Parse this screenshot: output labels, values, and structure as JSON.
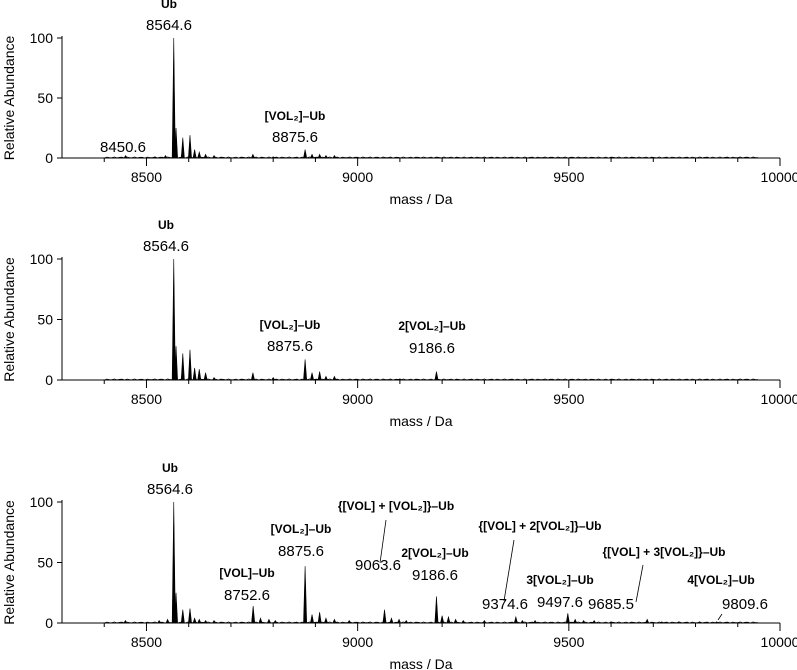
{
  "chart_data": [
    {
      "type": "bar",
      "xlabel": "mass / Da",
      "ylabel": "Relative Abundance",
      "xlim": [
        8300,
        10000
      ],
      "ylim": [
        0,
        100
      ],
      "xticks": [
        8500,
        9000,
        9500,
        10000
      ],
      "yticks": [
        0,
        50,
        100
      ],
      "peaks": [
        {
          "x": 8450.6,
          "y": 2
        },
        {
          "x": 8520,
          "y": 1
        },
        {
          "x": 8545,
          "y": 2
        },
        {
          "x": 8564.6,
          "y": 100
        },
        {
          "x": 8570,
          "y": 25
        },
        {
          "x": 8586,
          "y": 17
        },
        {
          "x": 8603,
          "y": 19
        },
        {
          "x": 8614,
          "y": 7
        },
        {
          "x": 8625,
          "y": 5
        },
        {
          "x": 8640,
          "y": 3
        },
        {
          "x": 8660,
          "y": 2
        },
        {
          "x": 8752,
          "y": 3
        },
        {
          "x": 8800,
          "y": 1
        },
        {
          "x": 8875.6,
          "y": 7
        },
        {
          "x": 8892,
          "y": 3
        },
        {
          "x": 8910,
          "y": 3
        },
        {
          "x": 8925,
          "y": 2
        },
        {
          "x": 8945,
          "y": 2
        }
      ],
      "annotations": [
        {
          "label": "Ub",
          "value": "8564.6",
          "x": 8564.6,
          "y": 100
        },
        {
          "label": "",
          "value": "8450.6",
          "x": 8450.6,
          "y": 2
        },
        {
          "label": "[VOL₂]–Ub",
          "value": "8875.6",
          "x": 8875.6,
          "y": 7
        }
      ]
    },
    {
      "type": "bar",
      "xlabel": "mass / Da",
      "ylabel": "Relative Abundance",
      "xlim": [
        8300,
        10000
      ],
      "ylim": [
        0,
        100
      ],
      "xticks": [
        8500,
        9000,
        9500,
        10000
      ],
      "yticks": [
        0,
        50,
        100
      ],
      "peaks": [
        {
          "x": 8564.6,
          "y": 100
        },
        {
          "x": 8570,
          "y": 28
        },
        {
          "x": 8586,
          "y": 22
        },
        {
          "x": 8603,
          "y": 25
        },
        {
          "x": 8614,
          "y": 10
        },
        {
          "x": 8625,
          "y": 9
        },
        {
          "x": 8640,
          "y": 6
        },
        {
          "x": 8660,
          "y": 2
        },
        {
          "x": 8752,
          "y": 6
        },
        {
          "x": 8800,
          "y": 2
        },
        {
          "x": 8875.6,
          "y": 17
        },
        {
          "x": 8892,
          "y": 6
        },
        {
          "x": 8910,
          "y": 7
        },
        {
          "x": 8925,
          "y": 3
        },
        {
          "x": 8945,
          "y": 3
        },
        {
          "x": 9100,
          "y": 1
        },
        {
          "x": 9186.6,
          "y": 7
        }
      ],
      "annotations": [
        {
          "label": "Ub",
          "value": "8564.6",
          "x": 8564.6,
          "y": 100
        },
        {
          "label": "[VOL₂]–Ub",
          "value": "8875.6",
          "x": 8875.6,
          "y": 17
        },
        {
          "label": "2[VOL₂]–Ub",
          "value": "9186.6",
          "x": 9186.6,
          "y": 7
        }
      ]
    },
    {
      "type": "bar",
      "xlabel": "mass / Da",
      "ylabel": "Relative Abundance",
      "xlim": [
        8300,
        10000
      ],
      "ylim": [
        0,
        100
      ],
      "xticks": [
        8500,
        9000,
        9500,
        10000
      ],
      "yticks": [
        0,
        50,
        100
      ],
      "peaks": [
        {
          "x": 8450,
          "y": 2
        },
        {
          "x": 8530,
          "y": 2
        },
        {
          "x": 8550,
          "y": 3
        },
        {
          "x": 8564.6,
          "y": 100
        },
        {
          "x": 8570,
          "y": 25
        },
        {
          "x": 8586,
          "y": 11
        },
        {
          "x": 8603,
          "y": 12
        },
        {
          "x": 8614,
          "y": 4
        },
        {
          "x": 8625,
          "y": 3
        },
        {
          "x": 8640,
          "y": 2
        },
        {
          "x": 8660,
          "y": 2
        },
        {
          "x": 8752.6,
          "y": 14
        },
        {
          "x": 8770,
          "y": 4
        },
        {
          "x": 8790,
          "y": 3
        },
        {
          "x": 8805,
          "y": 2
        },
        {
          "x": 8875.6,
          "y": 47
        },
        {
          "x": 8892,
          "y": 7
        },
        {
          "x": 8910,
          "y": 9
        },
        {
          "x": 8925,
          "y": 4
        },
        {
          "x": 8945,
          "y": 3
        },
        {
          "x": 8980,
          "y": 2
        },
        {
          "x": 9063.6,
          "y": 11
        },
        {
          "x": 9080,
          "y": 4
        },
        {
          "x": 9098,
          "y": 3
        },
        {
          "x": 9115,
          "y": 2
        },
        {
          "x": 9186.6,
          "y": 22
        },
        {
          "x": 9200,
          "y": 6
        },
        {
          "x": 9215,
          "y": 5
        },
        {
          "x": 9232,
          "y": 3
        },
        {
          "x": 9250,
          "y": 2
        },
        {
          "x": 9300,
          "y": 2
        },
        {
          "x": 9374.6,
          "y": 5
        },
        {
          "x": 9390,
          "y": 2
        },
        {
          "x": 9420,
          "y": 2
        },
        {
          "x": 9497.6,
          "y": 8
        },
        {
          "x": 9515,
          "y": 3
        },
        {
          "x": 9535,
          "y": 2
        },
        {
          "x": 9560,
          "y": 2
        },
        {
          "x": 9600,
          "y": 1
        },
        {
          "x": 9685.5,
          "y": 3
        },
        {
          "x": 9720,
          "y": 1
        },
        {
          "x": 9760,
          "y": 1
        },
        {
          "x": 9809.6,
          "y": 1
        },
        {
          "x": 9850,
          "y": 1
        }
      ],
      "annotations": [
        {
          "label": "Ub",
          "value": "8564.6",
          "x": 8564.6,
          "y": 100
        },
        {
          "label": "[VOL]–Ub",
          "value": "8752.6",
          "x": 8752.6,
          "y": 14
        },
        {
          "label": "[VOL₂]–Ub",
          "value": "8875.6",
          "x": 8875.6,
          "y": 47
        },
        {
          "label": "{[VOL] + [VOL₂]}–Ub",
          "value": "9063.6",
          "x": 9063.6,
          "y": 11
        },
        {
          "label": "2[VOL₂]–Ub",
          "value": "9186.6",
          "x": 9186.6,
          "y": 22
        },
        {
          "label": "{[VOL] + 2[VOL₂]}–Ub",
          "value": "9374.6",
          "x": 9374.6,
          "y": 5
        },
        {
          "label": "3[VOL₂]–Ub",
          "value": "9497.6",
          "x": 9497.6,
          "y": 8
        },
        {
          "label": "{[VOL] + 3[VOL₂]}–Ub",
          "value": "9685.5",
          "x": 9685.5,
          "y": 3
        },
        {
          "label": "4[VOL₂]–Ub",
          "value": "9809.6",
          "x": 9809.6,
          "y": 1
        }
      ]
    }
  ]
}
